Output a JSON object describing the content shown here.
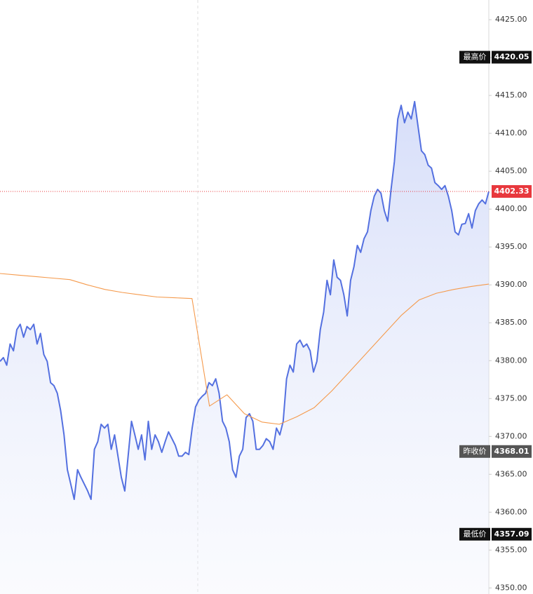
{
  "chart_data": {
    "type": "line",
    "ylim": [
      4349.2,
      4427.6
    ],
    "yticks": [
      {
        "value": 4350,
        "label": "4350.00"
      },
      {
        "value": 4355,
        "label": "4355.00"
      },
      {
        "value": 4360,
        "label": "4360.00"
      },
      {
        "value": 4365,
        "label": "4365.00"
      },
      {
        "value": 4370,
        "label": "4370.00"
      },
      {
        "value": 4375,
        "label": "4375.00"
      },
      {
        "value": 4380,
        "label": "4380.00"
      },
      {
        "value": 4385,
        "label": "4385.00"
      },
      {
        "value": 4390,
        "label": "4390.00"
      },
      {
        "value": 4395,
        "label": "4395.00"
      },
      {
        "value": 4400,
        "label": "4400.00"
      },
      {
        "value": 4405,
        "label": "4405.00"
      },
      {
        "value": 4410,
        "label": "4410.00"
      },
      {
        "value": 4415,
        "label": "4415.00"
      },
      {
        "value": 4420,
        "label": "4420.00"
      },
      {
        "value": 4425,
        "label": "4425.00"
      }
    ],
    "series": [
      {
        "color": "#5470e0",
        "values": [
          4379.9,
          4380.4,
          4379.4,
          4382.2,
          4381.3,
          4384.1,
          4384.8,
          4383.1,
          4384.5,
          4384.1,
          4384.8,
          4382.2,
          4383.6,
          4380.8,
          4379.9,
          4377.1,
          4376.7,
          4375.7,
          4373.4,
          4370.2,
          4365.6,
          4363.7,
          4361.7,
          4365.6,
          4364.6,
          4363.7,
          4362.8,
          4361.7,
          4368.3,
          4369.3,
          4371.6,
          4371.1,
          4371.6,
          4368.3,
          4370.2,
          4367.4,
          4364.6,
          4362.8,
          4367.4,
          4372.0,
          4370.2,
          4368.3,
          4370.2,
          4366.9,
          4372.0,
          4368.3,
          4370.2,
          4369.3,
          4367.9,
          4369.3,
          4370.6,
          4369.7,
          4368.8,
          4367.4,
          4367.4,
          4367.9,
          4367.6,
          4371.1,
          4373.9,
          4374.8,
          4375.3,
          4375.7,
          4377.1,
          4376.7,
          4377.6,
          4375.7,
          4372.0,
          4371.1,
          4369.3,
          4365.6,
          4364.6,
          4367.4,
          4368.3,
          4372.5,
          4373.0,
          4372.0,
          4368.3,
          4368.3,
          4368.8,
          4369.7,
          4369.3,
          4368.3,
          4371.1,
          4370.2,
          4372.0,
          4377.6,
          4379.4,
          4378.5,
          4382.2,
          4382.7,
          4381.8,
          4382.2,
          4381.3,
          4378.5,
          4379.9,
          4384.1,
          4386.4,
          4390.6,
          4388.7,
          4393.3,
          4391.0,
          4390.6,
          4388.7,
          4385.9,
          4390.6,
          4392.4,
          4395.2,
          4394.3,
          4396.1,
          4397.0,
          4399.8,
          4401.7,
          4402.6,
          4402.1,
          4399.8,
          4398.4,
          4402.6,
          4406.3,
          4411.9,
          4413.7,
          4411.4,
          4412.8,
          4411.9,
          4414.2,
          4410.9,
          4407.7,
          4407.2,
          4405.8,
          4405.4,
          4403.5,
          4403.1,
          4402.6,
          4403.1,
          4401.7,
          4399.8,
          4397.0,
          4396.6,
          4398.0,
          4398.1,
          4399.4,
          4397.5,
          4399.8,
          4400.7,
          4401.2,
          4400.7,
          4402.33
        ]
      },
      {
        "color": "#f59a4c",
        "values": [
          4391.5,
          4391.3,
          4391.1,
          4390.9,
          4390.7,
          4390.0,
          4389.4,
          4389.0,
          4388.7,
          4388.4,
          4388.3,
          4388.2,
          4374.0,
          4375.5,
          4373.0,
          4371.9,
          4371.6,
          4372.6,
          4373.8,
          4376.0,
          4378.5,
          4381.0,
          4383.5,
          4386.0,
          4388.0,
          4388.9,
          4389.4,
          4389.8,
          4390.1
        ]
      }
    ],
    "markers": [
      {
        "label": "最高价",
        "value": 4420.05,
        "color": "#111111"
      },
      {
        "value": 4402.33,
        "color": "#e8383d"
      },
      {
        "label": "昨收价",
        "value": 4368.01,
        "color": "#555555"
      },
      {
        "label": "最低价",
        "value": 4357.09,
        "color": "#111111"
      }
    ]
  }
}
